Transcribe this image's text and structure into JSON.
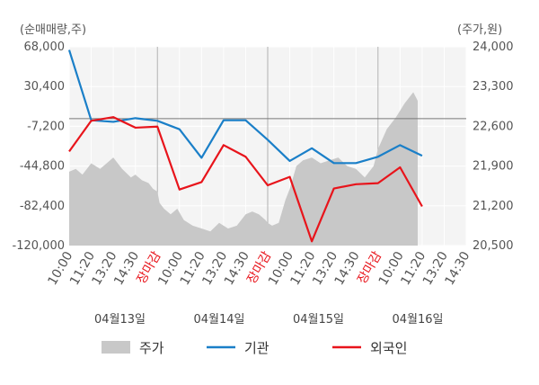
{
  "chart_data": {
    "type": "line",
    "y_left_unit": "(순매매량,주)",
    "y_right_unit": "(주가,원)",
    "y_left_ticks": [
      "68,000",
      "30,400",
      "-7,200",
      "-44,800",
      "-82,400",
      "-120,000"
    ],
    "y_right_ticks": [
      "24,000",
      "23,300",
      "22,600",
      "21,900",
      "21,200",
      "20,500"
    ],
    "ylim_left": [
      -120000,
      68000
    ],
    "ylim_right": [
      20500,
      24000
    ],
    "x_ticks": [
      {
        "label": "10:00",
        "red": false
      },
      {
        "label": "11:20",
        "red": false
      },
      {
        "label": "13:20",
        "red": false
      },
      {
        "label": "14:30",
        "red": false
      },
      {
        "label": "장마감",
        "red": true
      },
      {
        "label": "10:00",
        "red": false
      },
      {
        "label": "11:20",
        "red": false
      },
      {
        "label": "13:20",
        "red": false
      },
      {
        "label": "14:30",
        "red": false
      },
      {
        "label": "장마감",
        "red": true
      },
      {
        "label": "10:00",
        "red": false
      },
      {
        "label": "11:20",
        "red": false
      },
      {
        "label": "13:20",
        "red": false
      },
      {
        "label": "14:30",
        "red": false
      },
      {
        "label": "장마감",
        "red": true
      },
      {
        "label": "10:00",
        "red": false
      },
      {
        "label": "11:20",
        "red": false
      },
      {
        "label": "13:20",
        "red": false
      },
      {
        "label": "14:30",
        "red": false
      }
    ],
    "date_labels": [
      {
        "label": "04월13일",
        "at": 2.3
      },
      {
        "label": "04월14일",
        "at": 6.8
      },
      {
        "label": "04월15일",
        "at": 11.3
      },
      {
        "label": "04월16일",
        "at": 15.8
      }
    ],
    "day_separators": [
      4,
      9,
      14
    ],
    "series": [
      {
        "name": "기관",
        "axis": "left",
        "color": "#1a7fc8",
        "x": [
          0,
          1,
          2,
          3,
          4,
          5,
          6,
          7,
          8,
          9,
          10,
          11,
          12,
          13,
          14,
          15,
          16
        ],
        "values": [
          65000,
          -1500,
          -3000,
          500,
          -2000,
          -10000,
          -37000,
          -1500,
          -1500,
          -20000,
          -40000,
          -28000,
          -42000,
          -42000,
          -36000,
          -25000,
          -35000
        ]
      },
      {
        "name": "외국인",
        "axis": "left",
        "color": "#e8141b",
        "x": [
          0,
          1,
          2,
          3,
          4,
          5,
          6,
          7,
          8,
          9,
          10,
          11,
          12,
          13,
          14,
          15,
          16
        ],
        "values": [
          -31000,
          -2000,
          1500,
          -8500,
          -7500,
          -67000,
          -60000,
          -25000,
          -36000,
          -63000,
          -55000,
          -116000,
          -66000,
          -62000,
          -61000,
          -46000,
          -83000
        ]
      },
      {
        "name": "주가",
        "axis": "right",
        "color": "#c8c8c8",
        "kind": "area",
        "x": [
          0,
          0.3,
          0.6,
          1.0,
          1.4,
          1.7,
          2.0,
          2.4,
          2.8,
          3.0,
          3.3,
          3.6,
          3.8,
          4.0,
          4.1,
          4.3,
          4.6,
          4.9,
          5.2,
          5.6,
          6.0,
          6.4,
          6.8,
          7.2,
          7.6,
          8.0,
          8.3,
          8.6,
          8.9,
          9.0,
          9.2,
          9.5,
          9.8,
          10.0,
          10.3,
          10.6,
          11.0,
          11.4,
          11.8,
          12.2,
          12.6,
          13.0,
          13.4,
          13.8,
          14.0,
          14.4,
          14.8,
          15.2,
          15.6,
          15.8
        ],
        "values": [
          21800,
          21850,
          21750,
          21950,
          21850,
          21950,
          22050,
          21850,
          21700,
          21750,
          21650,
          21600,
          21500,
          21450,
          21250,
          21150,
          21050,
          21150,
          20950,
          20850,
          20800,
          20750,
          20900,
          20800,
          20850,
          21050,
          21100,
          21050,
          20950,
          20900,
          20850,
          20900,
          21300,
          21500,
          21900,
          22000,
          22050,
          21950,
          22000,
          22050,
          21900,
          21850,
          21700,
          21900,
          22200,
          22550,
          22750,
          23000,
          23200,
          23050
        ]
      }
    ],
    "legend": [
      {
        "name": "주가",
        "kind": "box",
        "color": "#c8c8c8"
      },
      {
        "name": "기관",
        "kind": "line",
        "color": "#1a7fc8"
      },
      {
        "name": "외국인",
        "kind": "line",
        "color": "#e8141b"
      }
    ],
    "legend_position": "bottom",
    "grid": true
  }
}
